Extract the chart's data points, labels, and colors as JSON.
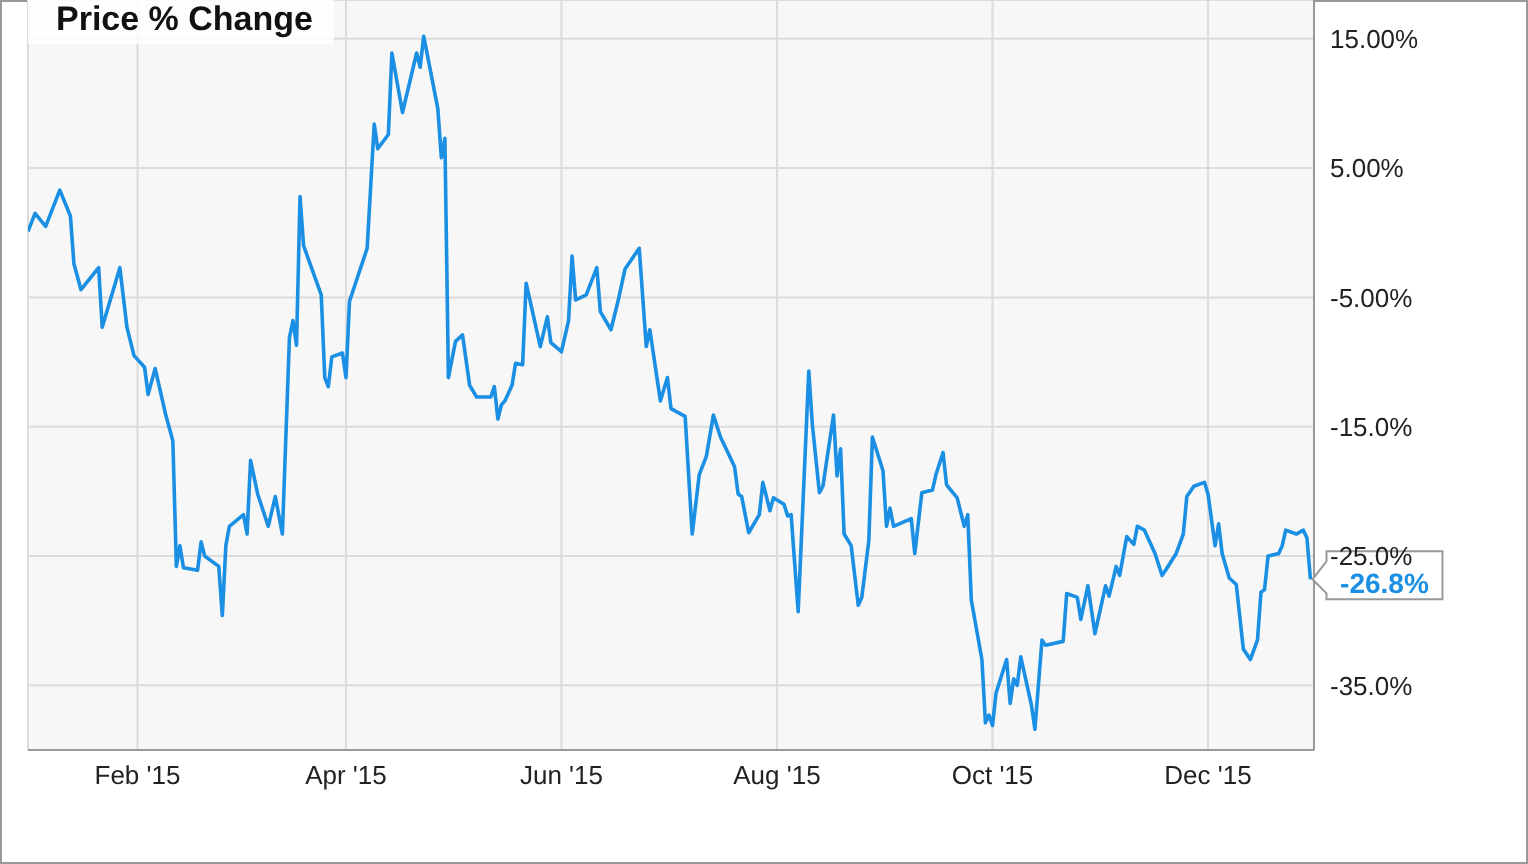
{
  "chart_data": {
    "type": "line",
    "title": "Price % Change",
    "xlim": [
      "2015-01-01",
      "2015-12-31"
    ],
    "xticks": [
      {
        "value": "2015-02-01",
        "label": "Feb '15"
      },
      {
        "value": "2015-04-01",
        "label": "Apr '15"
      },
      {
        "value": "2015-06-01",
        "label": "Jun '15"
      },
      {
        "value": "2015-08-01",
        "label": "Aug '15"
      },
      {
        "value": "2015-10-01",
        "label": "Oct '15"
      },
      {
        "value": "2015-12-01",
        "label": "Dec '15"
      }
    ],
    "ylim": [
      -40,
      18
    ],
    "yticks": [
      {
        "value": 15,
        "label": "15.00%"
      },
      {
        "value": 5,
        "label": "5.00%"
      },
      {
        "value": -5,
        "label": "-5.00%"
      },
      {
        "value": -15,
        "label": "-15.0%"
      },
      {
        "value": -25,
        "label": "-25.0%"
      },
      {
        "value": -35,
        "label": "-35.0%"
      }
    ],
    "grid": true,
    "annotations": [
      {
        "text": "-26.8%",
        "x": "2015-12-30",
        "y": -26.8
      }
    ],
    "series": [
      {
        "color": "#1a8fe3",
        "x": [
          "2015-01-01",
          "2015-01-03",
          "2015-01-06",
          "2015-01-10",
          "2015-01-13",
          "2015-01-14",
          "2015-01-16",
          "2015-01-21",
          "2015-01-22",
          "2015-01-27",
          "2015-01-29",
          "2015-01-31",
          "2015-02-03",
          "2015-02-04",
          "2015-02-06",
          "2015-02-09",
          "2015-02-11",
          "2015-02-12",
          "2015-02-13",
          "2015-02-14",
          "2015-02-18",
          "2015-02-19",
          "2015-02-20",
          "2015-02-24",
          "2015-02-25",
          "2015-02-26",
          "2015-02-27",
          "2015-03-03",
          "2015-03-04",
          "2015-03-05",
          "2015-03-07",
          "2015-03-10",
          "2015-03-12",
          "2015-03-14",
          "2015-03-16",
          "2015-03-17",
          "2015-03-18",
          "2015-03-19",
          "2015-03-20",
          "2015-03-25",
          "2015-03-26",
          "2015-03-27",
          "2015-03-28",
          "2015-03-31",
          "2015-04-01",
          "2015-04-02",
          "2015-04-07",
          "2015-04-09",
          "2015-04-10",
          "2015-04-13",
          "2015-04-14",
          "2015-04-17",
          "2015-04-21",
          "2015-04-22",
          "2015-04-23",
          "2015-04-25",
          "2015-04-27",
          "2015-04-28",
          "2015-04-29",
          "2015-04-30",
          "2015-05-02",
          "2015-05-04",
          "2015-05-06",
          "2015-05-08",
          "2015-05-12",
          "2015-05-13",
          "2015-05-14",
          "2015-05-15",
          "2015-05-16",
          "2015-05-18",
          "2015-05-19",
          "2015-05-21",
          "2015-05-22",
          "2015-05-26",
          "2015-05-28",
          "2015-05-29",
          "2015-06-01",
          "2015-06-03",
          "2015-06-04",
          "2015-06-05",
          "2015-06-08",
          "2015-06-11",
          "2015-06-12",
          "2015-06-15",
          "2015-06-17",
          "2015-06-19",
          "2015-06-23",
          "2015-06-25",
          "2015-06-26",
          "2015-06-29",
          "2015-07-01",
          "2015-07-02",
          "2015-07-06",
          "2015-07-08",
          "2015-07-10",
          "2015-07-12",
          "2015-07-14",
          "2015-07-16",
          "2015-07-20",
          "2015-07-21",
          "2015-07-22",
          "2015-07-24",
          "2015-07-27",
          "2015-07-28",
          "2015-07-30",
          "2015-07-31",
          "2015-08-03",
          "2015-08-04",
          "2015-08-05",
          "2015-08-07",
          "2015-08-10",
          "2015-08-11",
          "2015-08-13",
          "2015-08-14",
          "2015-08-17",
          "2015-08-18",
          "2015-08-19",
          "2015-08-20",
          "2015-08-22",
          "2015-08-24",
          "2015-08-25",
          "2015-08-27",
          "2015-08-28",
          "2015-08-31",
          "2015-09-01",
          "2015-09-02",
          "2015-09-03",
          "2015-09-08",
          "2015-09-09",
          "2015-09-11",
          "2015-09-14",
          "2015-09-15",
          "2015-09-17",
          "2015-09-18",
          "2015-09-21",
          "2015-09-23",
          "2015-09-24",
          "2015-09-25",
          "2015-09-28",
          "2015-09-29",
          "2015-09-30",
          "2015-10-01",
          "2015-10-02",
          "2015-10-05",
          "2015-10-06",
          "2015-10-07",
          "2015-10-08",
          "2015-10-09",
          "2015-10-12",
          "2015-10-13",
          "2015-10-15",
          "2015-10-16",
          "2015-10-21",
          "2015-10-22",
          "2015-10-25",
          "2015-10-26",
          "2015-10-28",
          "2015-10-30",
          "2015-11-02",
          "2015-11-03",
          "2015-11-05",
          "2015-11-06",
          "2015-11-08",
          "2015-11-10",
          "2015-11-11",
          "2015-11-13",
          "2015-11-16",
          "2015-11-18",
          "2015-11-19",
          "2015-11-22",
          "2015-11-24",
          "2015-11-25",
          "2015-11-27",
          "2015-11-30",
          "2015-12-01",
          "2015-12-03",
          "2015-12-04",
          "2015-12-05",
          "2015-12-07",
          "2015-12-09",
          "2015-12-11",
          "2015-12-13",
          "2015-12-15",
          "2015-12-16",
          "2015-12-17",
          "2015-12-18",
          "2015-12-21",
          "2015-12-22",
          "2015-12-23",
          "2015-12-26",
          "2015-12-28",
          "2015-12-29",
          "2015-12-30"
        ],
        "values": [
          0.1,
          1.5,
          0.5,
          3.3,
          1.3,
          -2.4,
          -4.4,
          -2.7,
          -7.3,
          -2.7,
          -7.3,
          -9.5,
          -10.4,
          -12.5,
          -10.5,
          -14.1,
          -16.1,
          -25.8,
          -24.2,
          -25.9,
          -26.1,
          -23.9,
          -25,
          -25.8,
          -29.6,
          -24.2,
          -22.7,
          -21.8,
          -23.3,
          -17.6,
          -20.2,
          -22.7,
          -20.4,
          -23.3,
          -8.1,
          -6.8,
          -8.7,
          2.8,
          -1,
          -4.8,
          -11.2,
          -11.9,
          -9.6,
          -9.3,
          -11.2,
          -5.3,
          -1.2,
          8.4,
          6.5,
          7.6,
          13.9,
          9.3,
          13.9,
          12.8,
          15.2,
          12.4,
          9.6,
          5.8,
          7.3,
          -11.2,
          -8.4,
          -7.9,
          -11.8,
          -12.7,
          -12.7,
          -11.9,
          -14.4,
          -13.3,
          -13,
          -11.8,
          -10.1,
          -10.2,
          -3.9,
          -8.8,
          -6.5,
          -8.5,
          -9.2,
          -6.8,
          -1.8,
          -5.2,
          -4.8,
          -2.7,
          -6.1,
          -7.5,
          -5.3,
          -2.8,
          -1.2,
          -8.8,
          -7.5,
          -13,
          -11.2,
          -13.6,
          -14.2,
          -23.3,
          -18.7,
          -17.3,
          -14.1,
          -15.8,
          -18.1,
          -20.2,
          -20.4,
          -23.2,
          -21.8,
          -19.3,
          -21.5,
          -20.5,
          -21,
          -21.9,
          -21.8,
          -29.3,
          -10.7,
          -14.8,
          -20.1,
          -19.6,
          -14.1,
          -18.8,
          -16.7,
          -23.3,
          -24.2,
          -28.8,
          -28.2,
          -23.8,
          -15.8,
          -18.4,
          -22.7,
          -21.3,
          -22.7,
          -22.1,
          -24.8,
          -20.1,
          -19.9,
          -18.7,
          -17,
          -19.5,
          -20.5,
          -22.7,
          -21.8,
          -28.4,
          -33,
          -37.9,
          -37.3,
          -38.1,
          -35.6,
          -33,
          -36.4,
          -34.5,
          -35,
          -32.8,
          -36.5,
          -38.4,
          -31.5,
          -31.9,
          -31.6,
          -27.9,
          -28.2,
          -29.9,
          -27.3,
          -31,
          -27.3,
          -28.1,
          -25.8,
          -26.5,
          -23.5,
          -24.1,
          -22.7,
          -23,
          -24.8,
          -26.5,
          -26.1,
          -24.8,
          -23.3,
          -20.4,
          -19.6,
          -19.3,
          -20.2,
          -24.2,
          -22.5,
          -24.8,
          -26.7,
          -27.2,
          -32.2,
          -33,
          -31.5,
          -27.8,
          -27.6,
          -25,
          -24.8,
          -24.2,
          -23,
          -23.3,
          -23,
          -23.6,
          -26.8
        ]
      }
    ]
  }
}
